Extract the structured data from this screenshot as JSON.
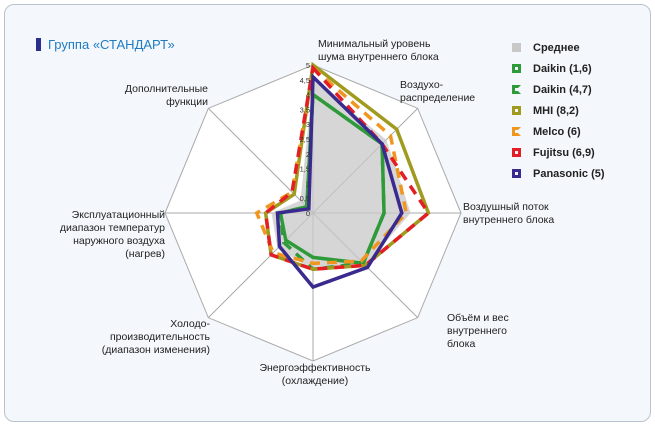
{
  "title": "Группа «СТАНДАРТ»",
  "chart_data": {
    "type": "radar",
    "axes": [
      "Минимальный уровень шума внутреннего блока",
      "Воздухо-распределение",
      "Воздушный поток внутреннего блока",
      "Объём и вес внутреннего блока",
      "Энергоэффективность (охлаждение)",
      "Холодо-производительность (диапазон изменения)",
      "Эксплуатационный диапазон температур наружного воздуха (нагрев)",
      "Дополнительные функции"
    ],
    "axis_labels": [
      [
        "Минимальный уровень",
        "шума внутреннего блока"
      ],
      [
        "Воздухо-",
        "распределение"
      ],
      [
        "Воздушный поток",
        "внутреннего блока"
      ],
      [
        "Объём и вес",
        "внутреннего",
        "блока"
      ],
      [
        "Энергоэффективность",
        "(охлаждение)"
      ],
      [
        "Холодо-",
        "производительность",
        "(диапазон изменения)"
      ],
      [
        "Эксплуатационный",
        "диапазон температур",
        "наружного воздуха",
        "(нагрев)"
      ],
      [
        "Дополнительные",
        "функции"
      ]
    ],
    "rlim": [
      0,
      5
    ],
    "ticks": [
      "0",
      "0,5",
      "1",
      "1,5",
      "2",
      "2,5",
      "3",
      "3,5",
      "4",
      "4,5",
      "5"
    ],
    "series": [
      {
        "name": "Среднее",
        "color": "#c8c8c8",
        "style": "fill",
        "values": [
          4.5,
          3.5,
          3.3,
          2.5,
          1.9,
          1.7,
          1.4,
          0.6
        ]
      },
      {
        "name": "Daikin (1,6)",
        "color": "#2e9a3a",
        "style": "solid",
        "values": [
          4.0,
          3.3,
          2.4,
          2.4,
          1.5,
          1.3,
          1.1,
          0.3
        ]
      },
      {
        "name": "Daikin (4,7)",
        "color": "#2e9a3a",
        "style": "dashed",
        "values": [
          4.0,
          3.3,
          2.4,
          2.4,
          1.9,
          1.4,
          1.1,
          0.3
        ]
      },
      {
        "name": "MHI (8,2)",
        "color": "#a09a1e",
        "style": "solid",
        "values": [
          5.0,
          4.0,
          3.9,
          2.5,
          1.9,
          2.0,
          1.6,
          0.9
        ]
      },
      {
        "name": "Melco (6)",
        "color": "#f0961e",
        "style": "dashed",
        "values": [
          4.9,
          3.7,
          3.15,
          2.3,
          1.7,
          1.9,
          1.9,
          1.0
        ]
      },
      {
        "name": "Fujitsu (6,9)",
        "color": "#e31e24",
        "style": "dashed",
        "values": [
          4.9,
          3.3,
          3.9,
          2.5,
          1.9,
          2.0,
          1.6,
          1.0
        ]
      },
      {
        "name": "Panasonic (5)",
        "color": "#3a2a8e",
        "style": "solid",
        "values": [
          4.6,
          3.3,
          3.0,
          2.6,
          2.5,
          1.6,
          1.2,
          0.2
        ]
      }
    ]
  }
}
